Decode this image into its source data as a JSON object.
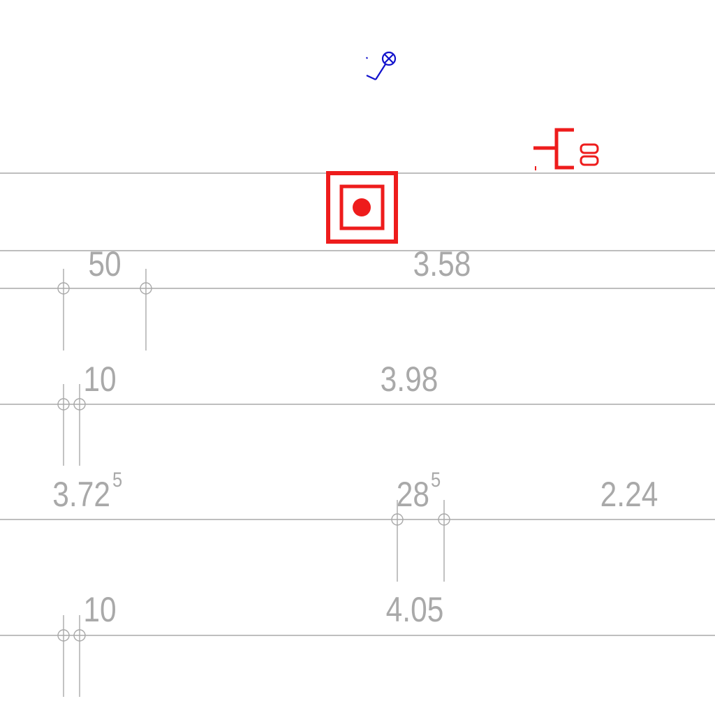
{
  "colors": {
    "dimension": "#a9a9a9",
    "socket": "#ee1c1c",
    "switch": "#1111cc"
  },
  "symbols": {
    "switch": "switch-icon",
    "socket": "socket-outlet-icon",
    "fitting": "fitting-icon"
  },
  "dimensions": {
    "row1": {
      "a": "50",
      "b": "3.58"
    },
    "row2": {
      "a": "10",
      "b": "3.98"
    },
    "row3": {
      "a": "3.72",
      "a_sup": "5",
      "b": "28",
      "b_sup": "5",
      "c": "2.24"
    },
    "row4": {
      "a": "10",
      "b": "4.05"
    }
  }
}
